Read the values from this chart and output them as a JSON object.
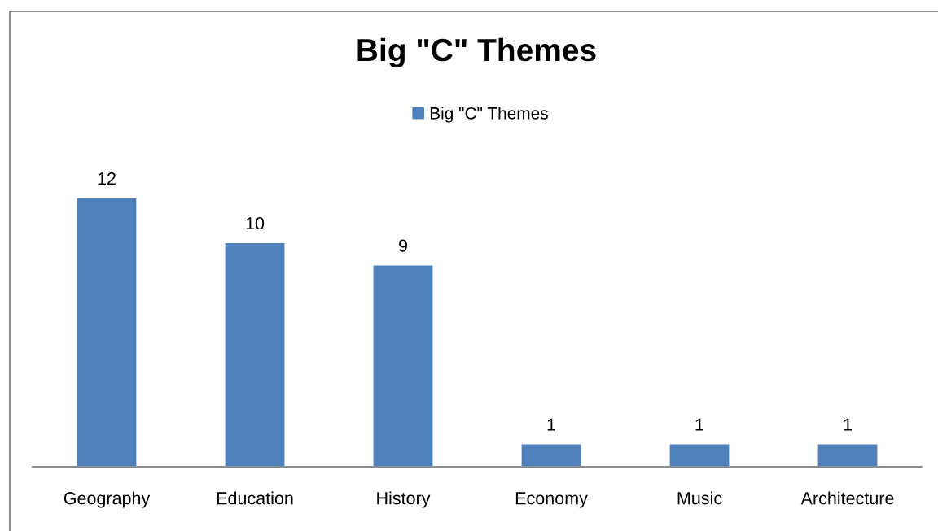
{
  "chart_data": {
    "type": "bar",
    "title": "Big \"C\" Themes",
    "categories": [
      "Geography",
      "Education",
      "History",
      "Economy",
      "Music",
      "Architecture"
    ],
    "series": [
      {
        "name": "Big \"C\" Themes",
        "color": "#4f81bd",
        "values": [
          12,
          10,
          9,
          1,
          1,
          1
        ]
      }
    ],
    "data_labels": true,
    "legend": "top",
    "grid": false,
    "tick_labels": "x"
  }
}
